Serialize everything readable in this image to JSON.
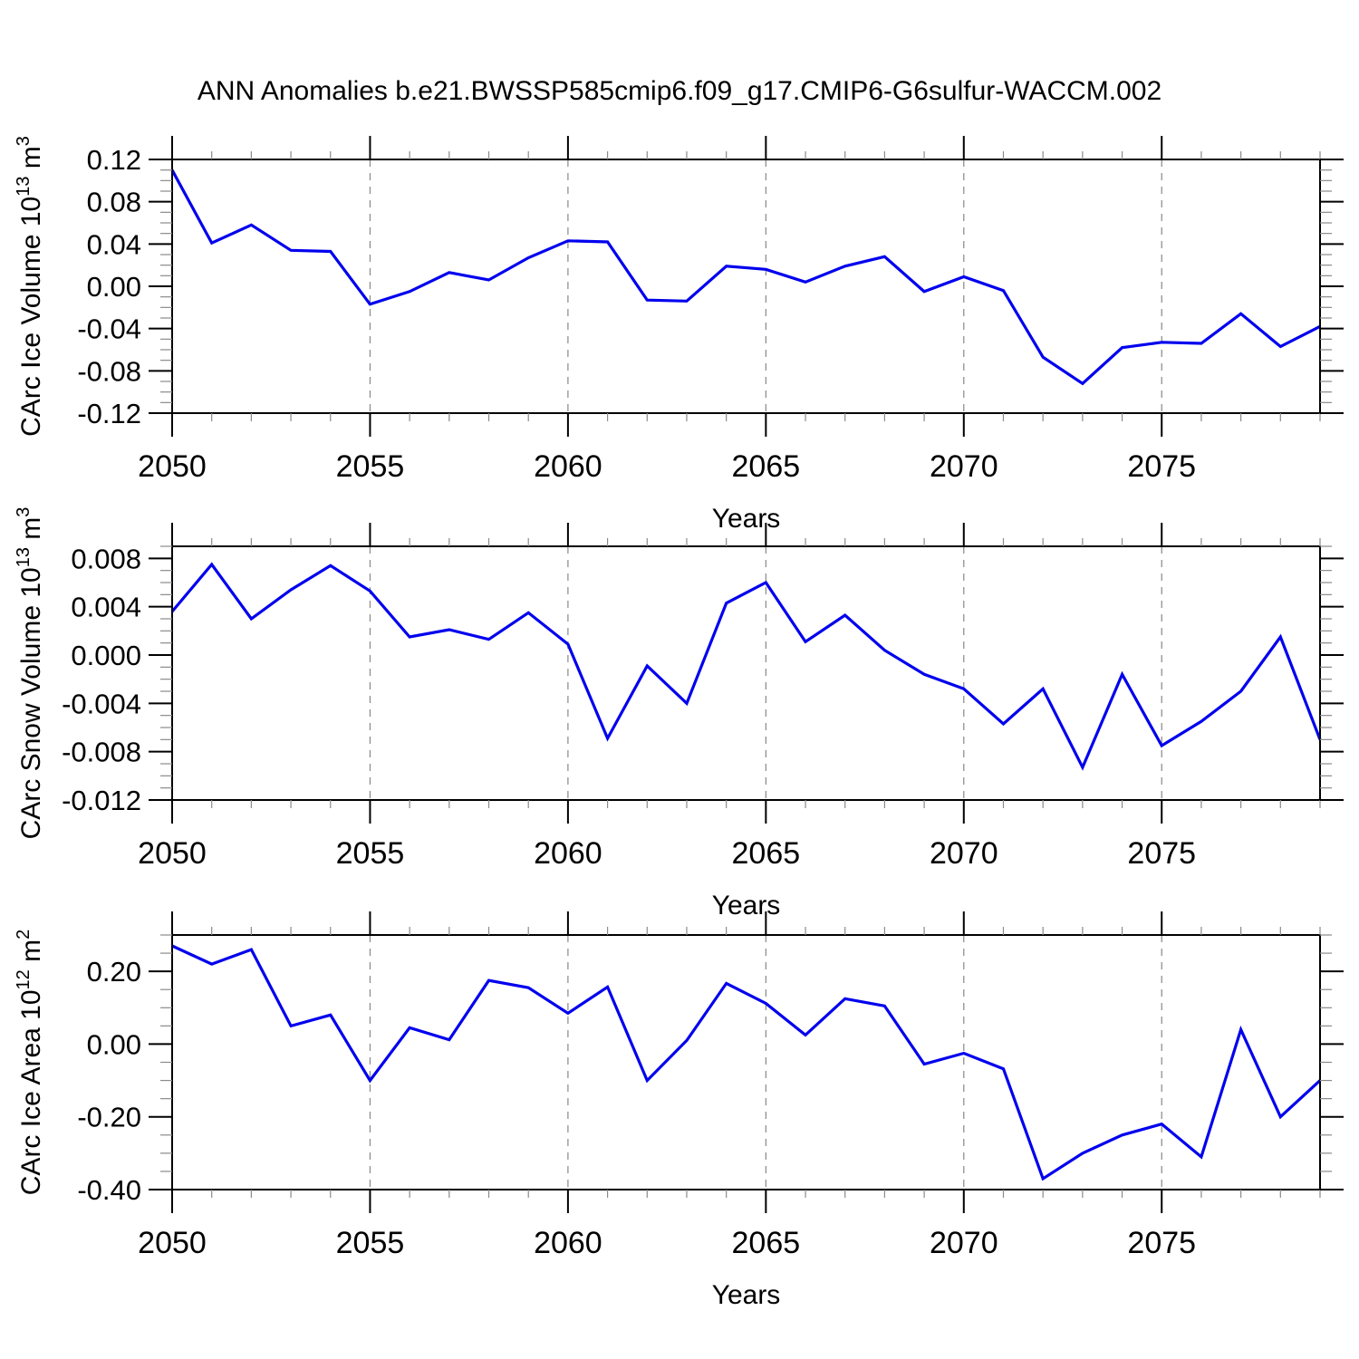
{
  "title": "ANN Anomalies b.e21.BWSSP585cmip6.f09_g17.CMIP6-G6sulfur-WACCM.002",
  "figure": {
    "bg": "#ffffff",
    "line_color": "#0000ee",
    "grid_color": "#888888",
    "axis_color": "#000000",
    "minor_tick_color": "#8a8a8a"
  },
  "chart_data": [
    {
      "type": "line",
      "panel": "carc-ice-volume",
      "ylabel_text": "CArc Ice Volume 10^13 m^3",
      "ylabel": {
        "prefix": "CArc Ice Volume 10",
        "sup": "13",
        "unit": " m",
        "unit_sup": "3"
      },
      "xlabel": "Years",
      "xlim": [
        2050,
        2079
      ],
      "ylim": [
        -0.12,
        0.12
      ],
      "xticks": [
        2050,
        2055,
        2060,
        2065,
        2070,
        2075
      ],
      "xtick_labels": [
        "2050",
        "2055",
        "2060",
        "2065",
        "2070",
        "2075"
      ],
      "grid_x": [
        2055,
        2060,
        2065,
        2070,
        2075
      ],
      "x_minor_step": 1,
      "y_minor_step": 0.01,
      "yticks": {
        "values": [
          0.12,
          0.08,
          0.04,
          0.0,
          -0.04,
          -0.08,
          -0.12
        ],
        "labels": [
          "0.12",
          "0.08",
          "0.04",
          "0.00",
          "-0.04",
          "-0.08",
          "-0.12"
        ]
      },
      "x": [
        2050,
        2051,
        2052,
        2053,
        2054,
        2055,
        2056,
        2057,
        2058,
        2059,
        2060,
        2061,
        2062,
        2063,
        2064,
        2065,
        2066,
        2067,
        2068,
        2069,
        2070,
        2071,
        2072,
        2073,
        2074,
        2075,
        2076,
        2077,
        2078,
        2079
      ],
      "values": [
        0.11,
        0.041,
        0.058,
        0.034,
        0.033,
        -0.017,
        -0.005,
        0.013,
        0.006,
        0.027,
        0.043,
        0.042,
        -0.013,
        -0.014,
        0.019,
        0.016,
        0.004,
        0.019,
        0.028,
        -0.005,
        0.009,
        -0.004,
        -0.067,
        -0.092,
        -0.058,
        -0.053,
        -0.054,
        -0.026,
        -0.057,
        -0.038
      ]
    },
    {
      "type": "line",
      "panel": "carc-snow-volume",
      "ylabel_text": "CArc Snow Volume 10^13 m^3",
      "ylabel": {
        "prefix": "CArc Snow Volume 10",
        "sup": "13",
        "unit": " m",
        "unit_sup": "3"
      },
      "xlabel": "Years",
      "xlim": [
        2050,
        2079
      ],
      "ylim": [
        -0.012,
        0.009
      ],
      "xticks": [
        2050,
        2055,
        2060,
        2065,
        2070,
        2075
      ],
      "xtick_labels": [
        "2050",
        "2055",
        "2060",
        "2065",
        "2070",
        "2075"
      ],
      "grid_x": [
        2055,
        2060,
        2065,
        2070,
        2075
      ],
      "x_minor_step": 1,
      "y_minor_step": 0.001,
      "yticks": {
        "values": [
          0.008,
          0.004,
          0.0,
          -0.004,
          -0.008,
          -0.012
        ],
        "labels": [
          "0.008",
          "0.004",
          "0.000",
          "-0.004",
          "-0.008",
          "-0.012"
        ]
      },
      "x": [
        2050,
        2051,
        2052,
        2053,
        2054,
        2055,
        2056,
        2057,
        2058,
        2059,
        2060,
        2061,
        2062,
        2063,
        2064,
        2065,
        2066,
        2067,
        2068,
        2069,
        2070,
        2071,
        2072,
        2073,
        2074,
        2075,
        2076,
        2077,
        2078,
        2079
      ],
      "values": [
        0.0036,
        0.0075,
        0.003,
        0.0054,
        0.0074,
        0.0053,
        0.0015,
        0.0021,
        0.0013,
        0.0035,
        0.0009,
        -0.0069,
        -0.0009,
        -0.004,
        0.0043,
        0.006,
        0.0011,
        0.0033,
        0.0004,
        -0.0016,
        -0.0028,
        -0.0057,
        -0.0028,
        -0.0093,
        -0.0016,
        -0.0075,
        -0.0055,
        -0.003,
        0.0015,
        -0.007
      ]
    },
    {
      "type": "line",
      "panel": "carc-ice-area",
      "ylabel_text": "CArc Ice Area 10^12 m^2",
      "ylabel": {
        "prefix": "CArc Ice Area 10",
        "sup": "12",
        "unit": " m",
        "unit_sup": "2"
      },
      "xlabel": "Years",
      "xlim": [
        2050,
        2079
      ],
      "ylim": [
        -0.4,
        0.3
      ],
      "xticks": [
        2050,
        2055,
        2060,
        2065,
        2070,
        2075
      ],
      "xtick_labels": [
        "2050",
        "2055",
        "2060",
        "2065",
        "2070",
        "2075"
      ],
      "grid_x": [
        2055,
        2060,
        2065,
        2070,
        2075
      ],
      "x_minor_step": 1,
      "y_minor_step": 0.05,
      "yticks": {
        "values": [
          0.2,
          0.0,
          -0.2,
          -0.4
        ],
        "labels": [
          "0.20",
          "0.00",
          "-0.20",
          "-0.40"
        ]
      },
      "x": [
        2050,
        2051,
        2052,
        2053,
        2054,
        2055,
        2056,
        2057,
        2058,
        2059,
        2060,
        2061,
        2062,
        2063,
        2064,
        2065,
        2066,
        2067,
        2068,
        2069,
        2070,
        2071,
        2072,
        2073,
        2074,
        2075,
        2076,
        2077,
        2078,
        2079
      ],
      "values": [
        0.27,
        0.22,
        0.26,
        0.05,
        0.08,
        -0.1,
        0.045,
        0.012,
        0.175,
        0.155,
        0.085,
        0.157,
        -0.1,
        0.01,
        0.167,
        0.112,
        0.025,
        0.125,
        0.105,
        -0.055,
        -0.025,
        -0.068,
        -0.37,
        -0.3,
        -0.25,
        -0.22,
        -0.31,
        0.04,
        -0.2,
        -0.1
      ]
    }
  ]
}
